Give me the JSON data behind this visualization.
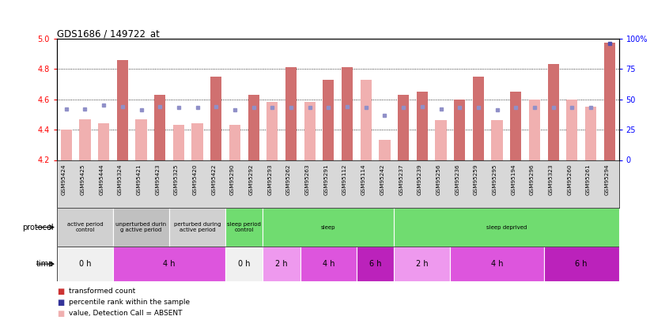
{
  "title": "GDS1686 / 149722_at",
  "samples": [
    "GSM95424",
    "GSM95425",
    "GSM95444",
    "GSM95324",
    "GSM95421",
    "GSM95423",
    "GSM95325",
    "GSM95420",
    "GSM95422",
    "GSM95290",
    "GSM95292",
    "GSM95293",
    "GSM95262",
    "GSM95263",
    "GSM95291",
    "GSM95112",
    "GSM95114",
    "GSM95242",
    "GSM95237",
    "GSM95239",
    "GSM95256",
    "GSM95236",
    "GSM95259",
    "GSM95295",
    "GSM95194",
    "GSM95296",
    "GSM95323",
    "GSM95260",
    "GSM95261",
    "GSM95294"
  ],
  "bar_values": [
    4.4,
    4.47,
    4.44,
    4.86,
    4.47,
    4.63,
    4.43,
    4.44,
    4.75,
    4.43,
    4.63,
    4.58,
    4.81,
    4.58,
    4.73,
    4.81,
    4.73,
    4.33,
    4.63,
    4.65,
    4.46,
    4.6,
    4.75,
    4.46,
    4.65,
    4.6,
    4.83,
    4.6,
    4.55,
    4.97
  ],
  "rank_values": [
    42,
    42,
    45,
    44,
    41,
    44,
    43,
    43,
    44,
    41,
    43,
    43,
    43,
    43,
    43,
    44,
    43,
    37,
    43,
    44,
    42,
    43,
    43,
    41,
    43,
    43,
    43,
    43,
    43,
    96
  ],
  "absent_bar": [
    true,
    true,
    true,
    false,
    true,
    false,
    true,
    true,
    false,
    true,
    false,
    true,
    false,
    true,
    false,
    false,
    true,
    true,
    false,
    false,
    true,
    false,
    false,
    true,
    false,
    true,
    false,
    true,
    true,
    false
  ],
  "absent_rank": [
    true,
    true,
    true,
    true,
    true,
    true,
    true,
    true,
    true,
    true,
    true,
    true,
    true,
    true,
    true,
    true,
    true,
    true,
    true,
    true,
    true,
    true,
    true,
    true,
    true,
    true,
    true,
    true,
    true,
    false
  ],
  "ylim_left": [
    4.2,
    5.0
  ],
  "ylim_right": [
    0,
    100
  ],
  "yticks_left": [
    4.2,
    4.4,
    4.6,
    4.8,
    5.0
  ],
  "yticks_right": [
    0,
    25,
    50,
    75,
    100
  ],
  "ytick_labels_right": [
    "0",
    "25",
    "50",
    "75",
    "100%"
  ],
  "bar_color_present": "#d07070",
  "bar_color_absent": "#f0b0b0",
  "rank_color_present": "#5050b0",
  "rank_color_absent": "#9090c8",
  "protocol_groups": [
    {
      "label": "active period\ncontrol",
      "start": 0,
      "end": 3,
      "color": "#d0d0d0"
    },
    {
      "label": "unperturbed durin\ng active period",
      "start": 3,
      "end": 6,
      "color": "#c0c0c0"
    },
    {
      "label": "perturbed during\nactive period",
      "start": 6,
      "end": 9,
      "color": "#d0d0d0"
    },
    {
      "label": "sleep period\ncontrol",
      "start": 9,
      "end": 11,
      "color": "#70dc70"
    },
    {
      "label": "sleep",
      "start": 11,
      "end": 18,
      "color": "#70dc70"
    },
    {
      "label": "sleep deprived",
      "start": 18,
      "end": 30,
      "color": "#70dc70"
    }
  ],
  "time_groups": [
    {
      "label": "0 h",
      "start": 0,
      "end": 3,
      "color": "#f0f0f0"
    },
    {
      "label": "4 h",
      "start": 3,
      "end": 9,
      "color": "#dd55dd"
    },
    {
      "label": "0 h",
      "start": 9,
      "end": 11,
      "color": "#f0f0f0"
    },
    {
      "label": "2 h",
      "start": 11,
      "end": 13,
      "color": "#ee99ee"
    },
    {
      "label": "4 h",
      "start": 13,
      "end": 16,
      "color": "#dd55dd"
    },
    {
      "label": "6 h",
      "start": 16,
      "end": 18,
      "color": "#bb22bb"
    },
    {
      "label": "2 h",
      "start": 18,
      "end": 21,
      "color": "#ee99ee"
    },
    {
      "label": "4 h",
      "start": 21,
      "end": 26,
      "color": "#dd55dd"
    },
    {
      "label": "6 h",
      "start": 26,
      "end": 30,
      "color": "#bb22bb"
    }
  ],
  "legend_items": [
    {
      "color": "#cc3333",
      "label": "transformed count"
    },
    {
      "color": "#333399",
      "label": "percentile rank within the sample"
    },
    {
      "color": "#f0b0b0",
      "label": "value, Detection Call = ABSENT"
    },
    {
      "color": "#9090c8",
      "label": "rank, Detection Call = ABSENT"
    }
  ]
}
